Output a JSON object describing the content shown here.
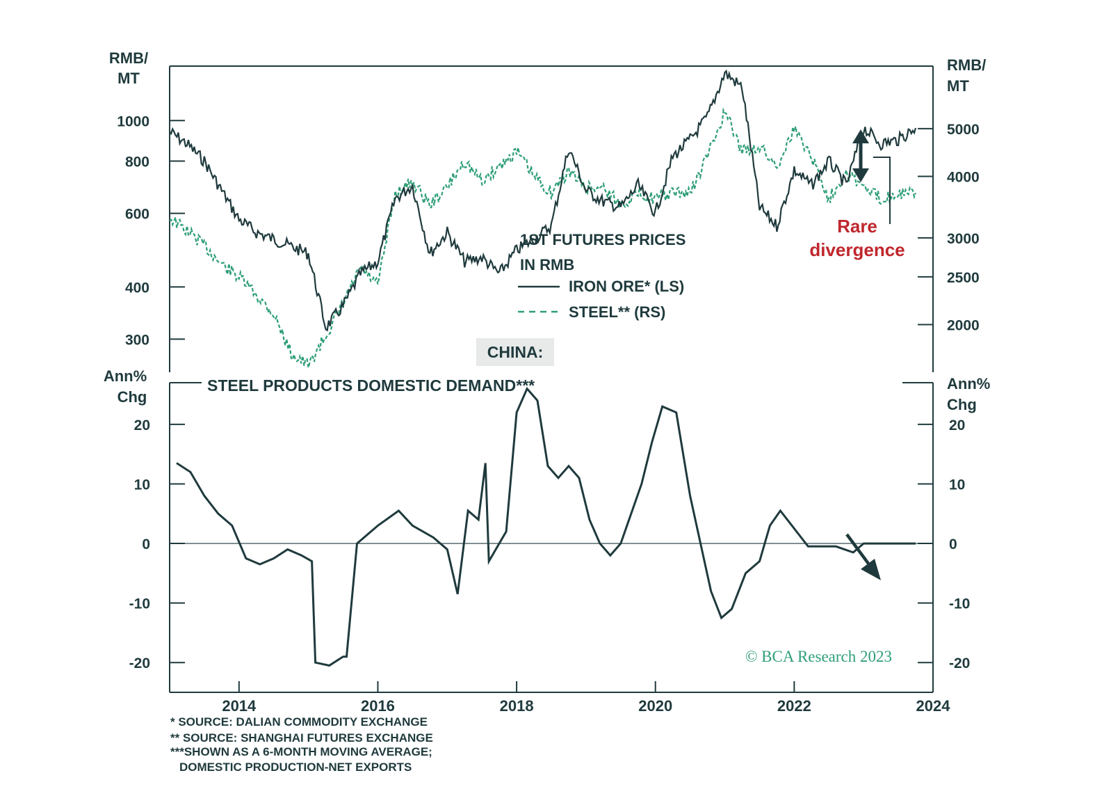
{
  "chart_data": [
    {
      "type": "line",
      "title": "1ST FUTURES PRICES IN RMB",
      "title_lines": [
        "1ST FUTURES PRICES",
        "IN RMB"
      ],
      "ylabel_left_lines": [
        "RMB/",
        "MT"
      ],
      "ylabel_right_lines": [
        "RMB/",
        "MT"
      ],
      "y_scale": "log",
      "ylim_left": [
        250,
        1350
      ],
      "ylim_right": [
        1600,
        6700
      ],
      "left_ticks": [
        300,
        400,
        600,
        800,
        1000
      ],
      "right_ticks": [
        2000,
        2500,
        3000,
        4000,
        5000
      ],
      "legend": [
        "IRON ORE* (LS)",
        "STEEL** (RS)"
      ],
      "annotation": [
        "Rare",
        "divergence"
      ],
      "series": [
        {
          "name": "IRON ORE* (LS)",
          "axis": "left",
          "color": "#1f3a3d",
          "style": "solid",
          "x": [
            2013.0,
            2013.25,
            2013.5,
            2013.75,
            2014.0,
            2014.25,
            2014.5,
            2014.75,
            2015.0,
            2015.25,
            2015.5,
            2015.75,
            2016.0,
            2016.25,
            2016.5,
            2016.75,
            2017.0,
            2017.25,
            2017.5,
            2017.75,
            2018.0,
            2018.25,
            2018.5,
            2018.75,
            2019.0,
            2019.25,
            2019.5,
            2019.75,
            2020.0,
            2020.25,
            2020.5,
            2020.75,
            2021.0,
            2021.25,
            2021.5,
            2021.75,
            2022.0,
            2022.25,
            2022.5,
            2022.75,
            2023.0,
            2023.25,
            2023.5,
            2023.75
          ],
          "values": [
            940,
            880,
            800,
            680,
            580,
            540,
            520,
            500,
            480,
            320,
            360,
            430,
            460,
            650,
            700,
            480,
            540,
            460,
            470,
            430,
            490,
            520,
            560,
            860,
            680,
            640,
            620,
            700,
            600,
            820,
            900,
            1020,
            1300,
            1200,
            620,
            560,
            760,
            700,
            800,
            700,
            960,
            880,
            900,
            960
          ]
        },
        {
          "name": "STEEL** (RS)",
          "axis": "right",
          "color": "#2e9e77",
          "style": "dashed",
          "x": [
            2013.0,
            2013.25,
            2013.5,
            2013.75,
            2014.0,
            2014.25,
            2014.5,
            2014.75,
            2015.0,
            2015.25,
            2015.5,
            2015.75,
            2016.0,
            2016.25,
            2016.5,
            2016.75,
            2017.0,
            2017.25,
            2017.5,
            2017.75,
            2018.0,
            2018.25,
            2018.5,
            2018.75,
            2019.0,
            2019.25,
            2019.5,
            2019.75,
            2020.0,
            2020.25,
            2020.5,
            2020.75,
            2021.0,
            2021.25,
            2021.5,
            2021.75,
            2022.0,
            2022.25,
            2022.5,
            2022.75,
            2023.0,
            2023.25,
            2023.5,
            2023.75
          ],
          "values": [
            3300,
            3100,
            2900,
            2650,
            2500,
            2300,
            2100,
            1750,
            1650,
            1900,
            2200,
            2600,
            2400,
            3700,
            3900,
            3500,
            3800,
            4300,
            3900,
            4200,
            4500,
            4000,
            3700,
            4100,
            3800,
            3800,
            3500,
            3700,
            3600,
            3700,
            3700,
            4400,
            5400,
            4500,
            4600,
            4200,
            5000,
            4400,
            3600,
            4100,
            3800,
            3600,
            3700,
            3700
          ]
        }
      ]
    },
    {
      "type": "line",
      "title": "STEEL PRODUCTS DOMESTIC DEMAND***",
      "header": "CHINA:",
      "ylabel_left_lines": [
        "Ann%",
        "Chg"
      ],
      "ylabel_right_lines": [
        "Ann%",
        "Chg"
      ],
      "ylim": [
        -25,
        27
      ],
      "y_ticks": [
        -20,
        -10,
        0,
        10,
        20
      ],
      "xlim": [
        2013.0,
        2024.0
      ],
      "x_ticks": [
        2014,
        2016,
        2018,
        2020,
        2022,
        2024
      ],
      "series": [
        {
          "name": "STEEL PRODUCTS DOMESTIC DEMAND***",
          "color": "#1f3a3d",
          "x": [
            2013.1,
            2013.3,
            2013.5,
            2013.7,
            2013.9,
            2014.1,
            2014.3,
            2014.5,
            2014.7,
            2014.9,
            2015.05,
            2015.1,
            2015.3,
            2015.5,
            2015.55,
            2015.7,
            2016.0,
            2016.3,
            2016.5,
            2016.8,
            2017.0,
            2017.15,
            2017.3,
            2017.45,
            2017.55,
            2017.6,
            2017.7,
            2017.85,
            2018.0,
            2018.15,
            2018.3,
            2018.45,
            2018.6,
            2018.75,
            2018.9,
            2019.05,
            2019.2,
            2019.35,
            2019.5,
            2019.65,
            2019.8,
            2019.95,
            2020.1,
            2020.3,
            2020.5,
            2020.65,
            2020.8,
            2020.95,
            2021.1,
            2021.3,
            2021.5,
            2021.65,
            2021.8,
            2022.0,
            2022.2,
            2022.4,
            2022.6,
            2022.85,
            2023.0,
            2023.15,
            2023.35,
            2023.55,
            2023.7,
            2023.75
          ],
          "values": [
            13.5,
            12,
            8,
            5,
            3,
            -2.5,
            -3.5,
            -2.5,
            -1,
            -2,
            -3,
            -20,
            -20.5,
            -19,
            -19,
            0,
            3,
            5.5,
            3,
            1,
            -1,
            -8.5,
            5.5,
            4,
            13.5,
            -3,
            -1,
            2,
            22,
            26,
            24,
            13,
            11,
            13,
            11,
            4,
            0,
            -2,
            0,
            5,
            10,
            17,
            23,
            22,
            8,
            0,
            -8,
            -12.5,
            -11,
            -5,
            -3,
            3,
            5.5,
            2.5,
            -0.5,
            -0.5,
            -0.5,
            -1.5,
            0,
            0,
            0,
            0,
            0,
            0
          ]
        }
      ]
    }
  ],
  "arrow_note": "projected decline",
  "watermark": "© BCA Research 2023",
  "footnotes": [
    "* SOURCE: DALIAN COMMODITY EXCHANGE",
    "** SOURCE: SHANGHAI FUTURES EXCHANGE",
    "***SHOWN AS A 6-MONTH MOVING AVERAGE;",
    "DOMESTIC PRODUCTION-NET EXPORTS"
  ],
  "colors": {
    "ink": "#1f3a3d",
    "green": "#2e9e77",
    "red": "#c0272d",
    "header_bg": "#e8eae9"
  }
}
